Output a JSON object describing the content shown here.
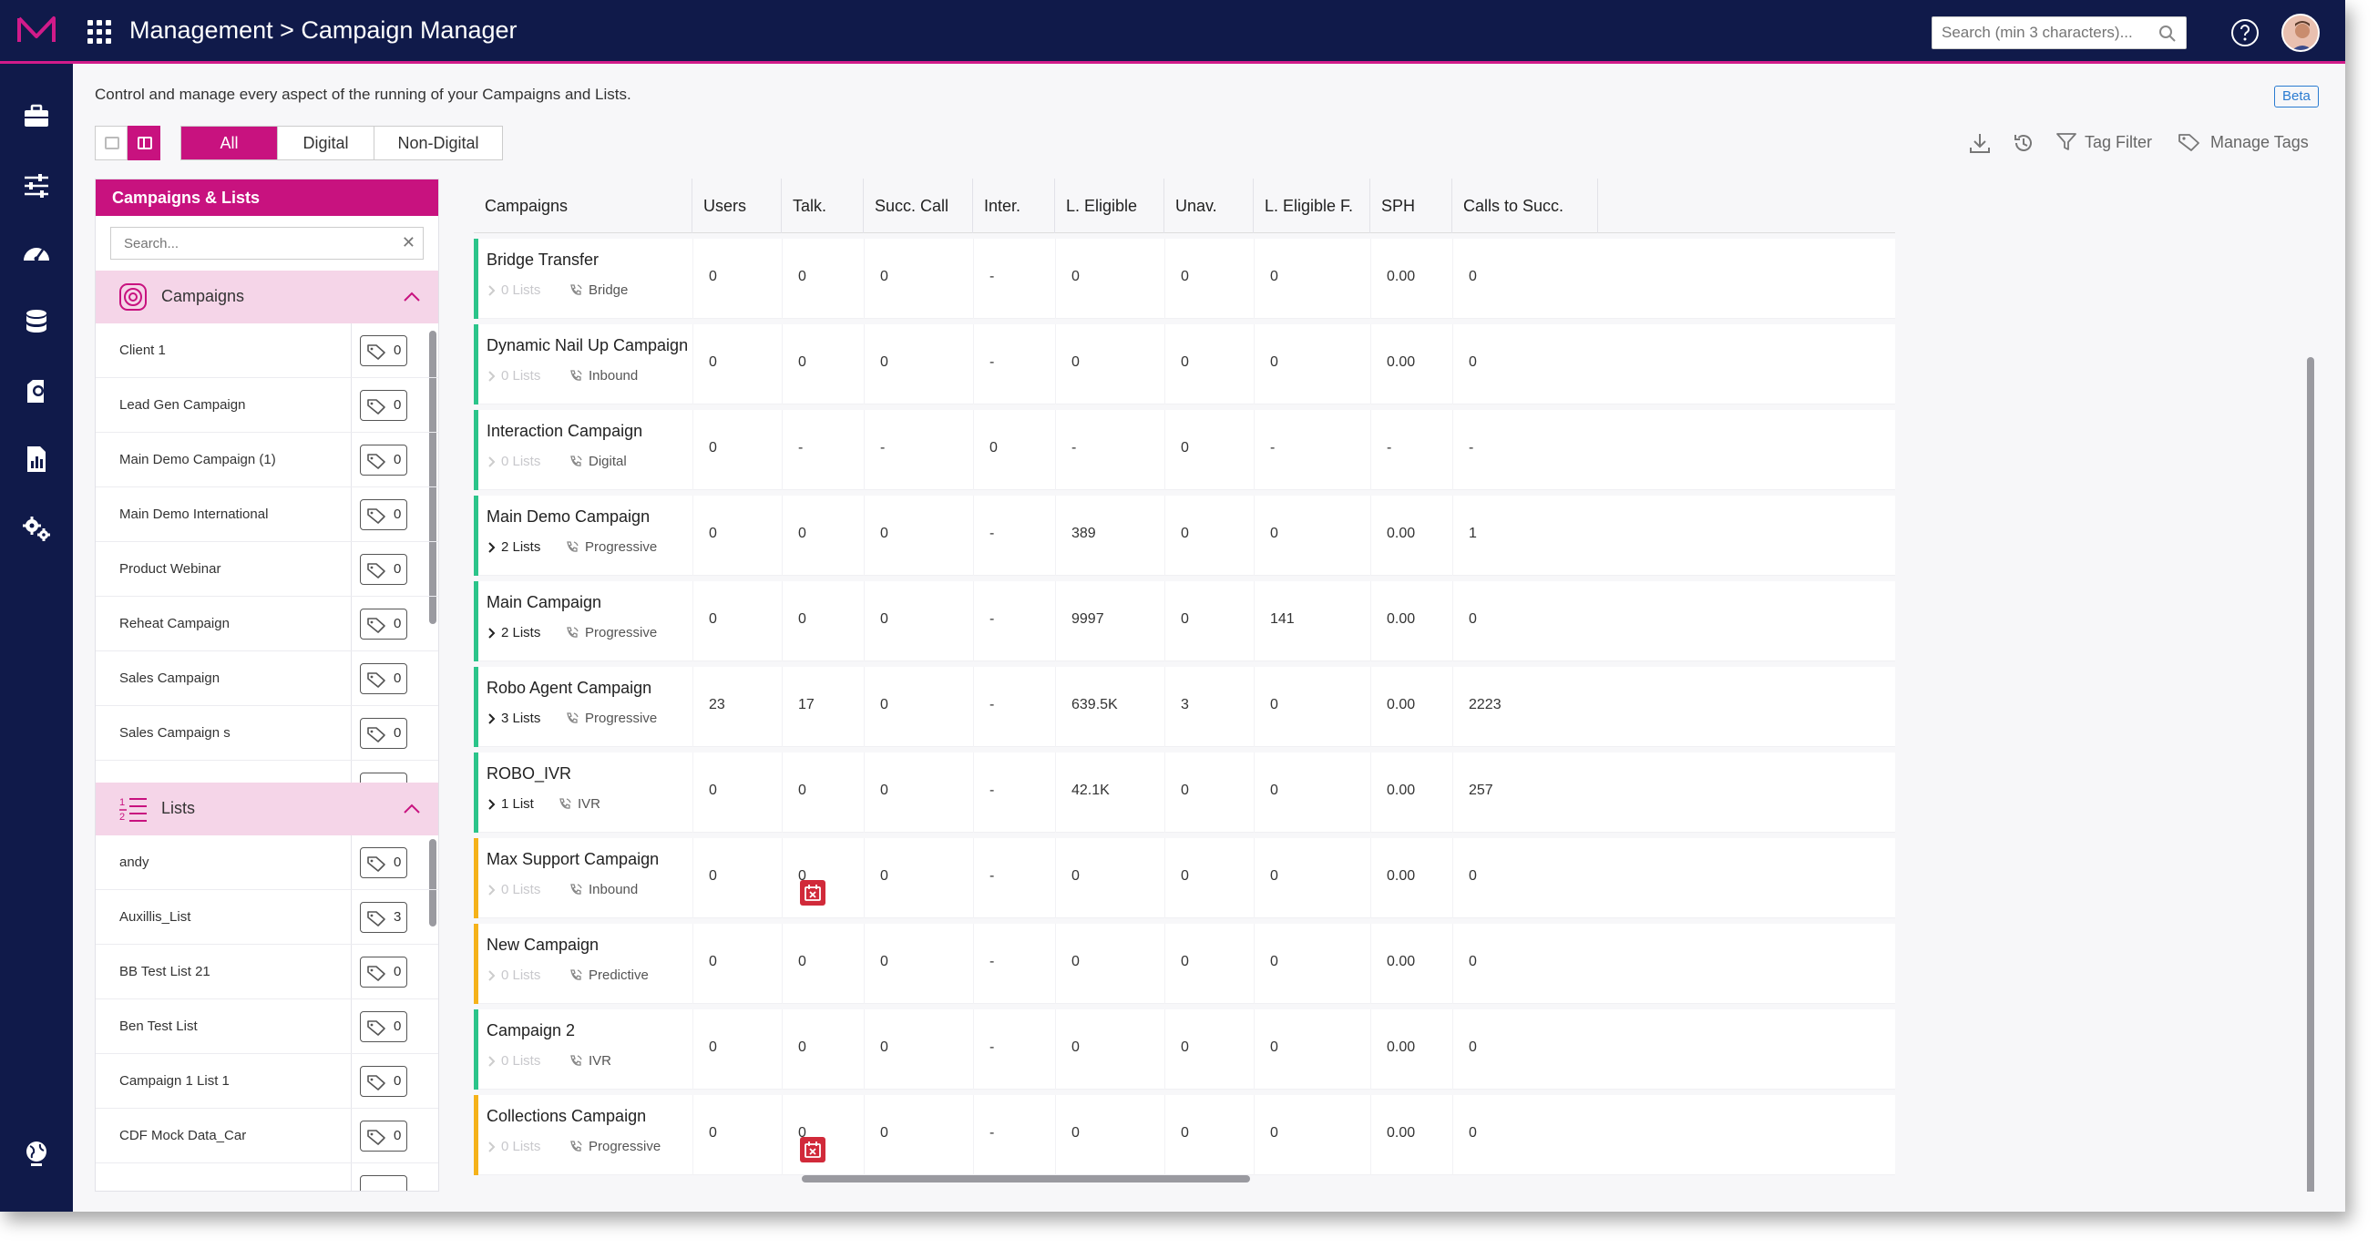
{
  "app": {
    "breadcrumb": "Management > Campaign Manager",
    "search_placeholder": "Search (min 3 characters)...",
    "accent_color": "#c8127f",
    "nav_bg_color": "#101a4a"
  },
  "nav": {
    "icons": [
      "briefcase-icon",
      "sliders-icon",
      "dashboard-gauge-icon",
      "database-icon",
      "contacts-icon",
      "report-icon",
      "settings-gears-icon",
      "globe-icon"
    ]
  },
  "page": {
    "description": "Control and manage every aspect of the running of your Campaigns and Lists.",
    "beta": "Beta"
  },
  "filters": {
    "all": "All",
    "digital": "Digital",
    "non_digital": "Non-Digital",
    "active": "All"
  },
  "toolbar": {
    "tag_filter": "Tag Filter",
    "manage_tags": "Manage Tags"
  },
  "panel": {
    "title": "Campaigns & Lists",
    "search_placeholder": "Search...",
    "campaigns_label": "Campaigns",
    "lists_label": "Lists",
    "campaigns": [
      {
        "name": "Client 1",
        "tags": "0"
      },
      {
        "name": "Lead Gen Campaign",
        "tags": "0"
      },
      {
        "name": "Main Demo Campaign (1)",
        "tags": "0"
      },
      {
        "name": "Main Demo International",
        "tags": "0"
      },
      {
        "name": "Product Webinar",
        "tags": "0"
      },
      {
        "name": "Reheat Campaign",
        "tags": "0"
      },
      {
        "name": "Sales Campaign",
        "tags": "0"
      },
      {
        "name": "Sales Campaign s",
        "tags": "0"
      }
    ],
    "lists": [
      {
        "name": "andy",
        "tags": "0"
      },
      {
        "name": "Auxillis_List",
        "tags": "3"
      },
      {
        "name": "BB Test List 21",
        "tags": "0"
      },
      {
        "name": "Ben Test List",
        "tags": "0"
      },
      {
        "name": "Campaign 1 List 1",
        "tags": "0"
      },
      {
        "name": "CDF Mock Data_Car",
        "tags": "0"
      }
    ]
  },
  "table": {
    "columns": [
      "Campaigns",
      "Users",
      "Talk.",
      "Succ. Call",
      "Inter.",
      "L. Eligible",
      "Unav.",
      "L. Eligible F.",
      "SPH",
      "Calls to Succ."
    ],
    "rows": [
      {
        "name": "Bridge Transfer",
        "lists": "0 Lists",
        "has_lists": false,
        "type": "Bridge",
        "status": "green",
        "scheduled": false,
        "values": [
          "0",
          "0",
          "0",
          "-",
          "0",
          "0",
          "0",
          "0.00",
          "0"
        ]
      },
      {
        "name": "Dynamic Nail Up Campaign",
        "lists": "0 Lists",
        "has_lists": false,
        "type": "Inbound",
        "status": "green",
        "scheduled": false,
        "values": [
          "0",
          "0",
          "0",
          "-",
          "0",
          "0",
          "0",
          "0.00",
          "0"
        ]
      },
      {
        "name": "Interaction Campaign",
        "lists": "0 Lists",
        "has_lists": false,
        "type": "Digital",
        "status": "green",
        "scheduled": false,
        "values": [
          "0",
          "-",
          "-",
          "0",
          "-",
          "0",
          "-",
          "-",
          "-"
        ]
      },
      {
        "name": "Main Demo Campaign",
        "lists": "2 Lists",
        "has_lists": true,
        "type": "Progressive",
        "status": "green",
        "scheduled": false,
        "values": [
          "0",
          "0",
          "0",
          "-",
          "389",
          "0",
          "0",
          "0.00",
          "1"
        ]
      },
      {
        "name": "Main Campaign",
        "lists": "2 Lists",
        "has_lists": true,
        "type": "Progressive",
        "status": "green",
        "scheduled": false,
        "values": [
          "0",
          "0",
          "0",
          "-",
          "9997",
          "0",
          "141",
          "0.00",
          "0"
        ]
      },
      {
        "name": "Robo Agent Campaign",
        "lists": "3 Lists",
        "has_lists": true,
        "type": "Progressive",
        "status": "green",
        "scheduled": false,
        "values": [
          "23",
          "17",
          "0",
          "-",
          "639.5K",
          "3",
          "0",
          "0.00",
          "2223"
        ]
      },
      {
        "name": "ROBO_IVR",
        "lists": "1 List",
        "has_lists": true,
        "type": "IVR",
        "status": "green",
        "scheduled": false,
        "values": [
          "0",
          "0",
          "0",
          "-",
          "42.1K",
          "0",
          "0",
          "0.00",
          "257"
        ]
      },
      {
        "name": "Max Support Campaign",
        "lists": "0 Lists",
        "has_lists": false,
        "type": "Inbound",
        "status": "orange",
        "scheduled": true,
        "values": [
          "0",
          "0",
          "0",
          "-",
          "0",
          "0",
          "0",
          "0.00",
          "0"
        ]
      },
      {
        "name": "New Campaign",
        "lists": "0 Lists",
        "has_lists": false,
        "type": "Predictive",
        "status": "orange",
        "scheduled": false,
        "values": [
          "0",
          "0",
          "0",
          "-",
          "0",
          "0",
          "0",
          "0.00",
          "0"
        ]
      },
      {
        "name": "Campaign 2",
        "lists": "0 Lists",
        "has_lists": false,
        "type": "IVR",
        "status": "green",
        "scheduled": false,
        "values": [
          "0",
          "0",
          "0",
          "-",
          "0",
          "0",
          "0",
          "0.00",
          "0"
        ]
      },
      {
        "name": "Collections Campaign",
        "lists": "0 Lists",
        "has_lists": false,
        "type": "Progressive",
        "status": "orange",
        "scheduled": true,
        "values": [
          "0",
          "0",
          "0",
          "-",
          "0",
          "0",
          "0",
          "0.00",
          "0"
        ]
      }
    ]
  }
}
